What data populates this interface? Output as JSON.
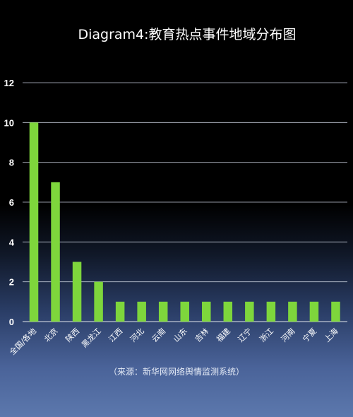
{
  "title": "Diagram4:教育热点事件地域分布图",
  "source_note": "（来源：新华网网络舆情监测系统）",
  "colors": {
    "background_top": "#000000",
    "background_bottom": "#5c78ad",
    "bar": "#7ed63c",
    "axis_text": "#ffffff",
    "gridline": "#bfc6d4"
  },
  "chart_data": {
    "type": "bar",
    "title": "Diagram4:教育热点事件地域分布图",
    "categories": [
      "全国/各地",
      "北京",
      "陕西",
      "黑龙江",
      "江西",
      "河北",
      "云南",
      "山东",
      "吉林",
      "福建",
      "辽宁",
      "浙江",
      "河南",
      "宁夏",
      "上海"
    ],
    "values": [
      10,
      7,
      3,
      2,
      1,
      1,
      1,
      1,
      1,
      1,
      1,
      1,
      1,
      1,
      1
    ],
    "yticks": [
      0,
      2,
      4,
      6,
      8,
      10,
      12
    ],
    "ylim": [
      0,
      12
    ],
    "xlabel": "",
    "ylabel": "",
    "grid": "horizontal",
    "legend": "none"
  }
}
